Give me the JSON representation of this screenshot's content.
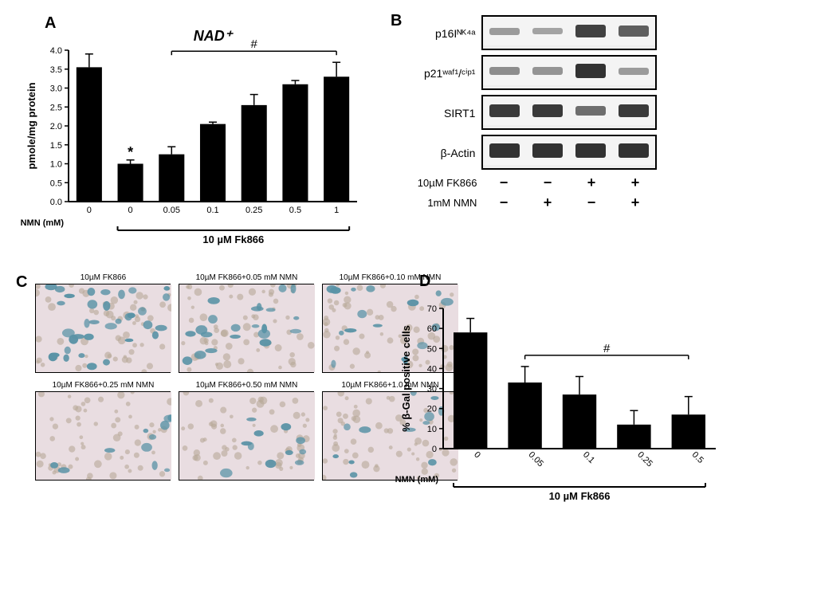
{
  "panelA": {
    "label": "A",
    "title": "NAD⁺",
    "ylabel": "pmole/mg protein",
    "ylim": [
      0,
      4.0
    ],
    "ytick_step": 0.5,
    "x_categories": [
      "0",
      "0",
      "0.05",
      "0.1",
      "0.25",
      "0.5",
      "1"
    ],
    "x_axis_label": "NMN (mM)",
    "bracket_label": "10 µM Fk866",
    "values": [
      3.55,
      1.0,
      1.25,
      2.05,
      2.55,
      3.1,
      3.3
    ],
    "errors": [
      0.35,
      0.1,
      0.2,
      0.05,
      0.28,
      0.1,
      0.38
    ],
    "bar_color": "#000000",
    "error_color": "#000000",
    "background": "#ffffff",
    "axis_color": "#000000",
    "bar_width": 0.62,
    "annotations": [
      {
        "type": "star",
        "text": "*",
        "bar_index": 1
      },
      {
        "type": "hash_line",
        "text": "#",
        "from_bar": 2,
        "to_bar": 6
      }
    ],
    "title_fontsize": 18,
    "label_fontsize": 13,
    "tick_fontsize": 11
  },
  "panelB": {
    "label": "B",
    "rows": [
      {
        "name": "p16Iᴺᴷ⁴ᵃ",
        "intensities": [
          0.25,
          0.2,
          0.85,
          0.65
        ]
      },
      {
        "name": "p21ʷᵃᶠ¹/ᶜⁱᵖ¹",
        "intensities": [
          0.35,
          0.3,
          0.95,
          0.25
        ]
      },
      {
        "name": "SIRT1",
        "intensities": [
          0.9,
          0.9,
          0.55,
          0.9
        ]
      },
      {
        "name": "β-Actin",
        "intensities": [
          0.95,
          0.95,
          0.95,
          0.95
        ]
      }
    ],
    "conditions": [
      {
        "name": "10µM FK866",
        "vals": [
          "−",
          "−",
          "+",
          "+"
        ]
      },
      {
        "name": "1mM NMN",
        "vals": [
          "−",
          "+",
          "−",
          "+"
        ]
      }
    ],
    "band_color": "#2a2a2a",
    "strip_bg": "#eeeeee"
  },
  "panelC": {
    "label": "C",
    "captions": [
      "10µM FK866",
      "10µM FK866+0.05 mM NMN",
      "10µM FK866+0.10 mM NMN",
      "10µM FK866+0.25 mM NMN",
      "10µM FK866+0.50 mM NMN",
      "10µM FK866+1.0 mM NMN"
    ],
    "stain_densities": [
      1.0,
      0.55,
      0.4,
      0.22,
      0.22,
      0.25
    ],
    "cell_bg": "#e9dde1",
    "stain_color": "#5a93a6",
    "nucleus_color": "#b8a898"
  },
  "panelD": {
    "label": "D",
    "ylabel": "% β-Gal positive cells",
    "ylim": [
      0,
      70
    ],
    "ytick_step": 10,
    "x_categories": [
      "0",
      "0.05",
      "0.1",
      "0.25",
      "0.5"
    ],
    "x_axis_label": "NMN (mM)",
    "bracket_label": "10 µM Fk866",
    "values": [
      58,
      33,
      27,
      12,
      17
    ],
    "errors": [
      7,
      8,
      9,
      7,
      9
    ],
    "bar_color": "#000000",
    "error_color": "#000000",
    "axis_color": "#000000",
    "bar_width": 0.62,
    "annotations": [
      {
        "type": "hash_line",
        "text": "#",
        "from_bar": 1,
        "to_bar": 4
      }
    ],
    "label_fontsize": 13,
    "tick_fontsize": 11,
    "rotate_xticks": true
  }
}
